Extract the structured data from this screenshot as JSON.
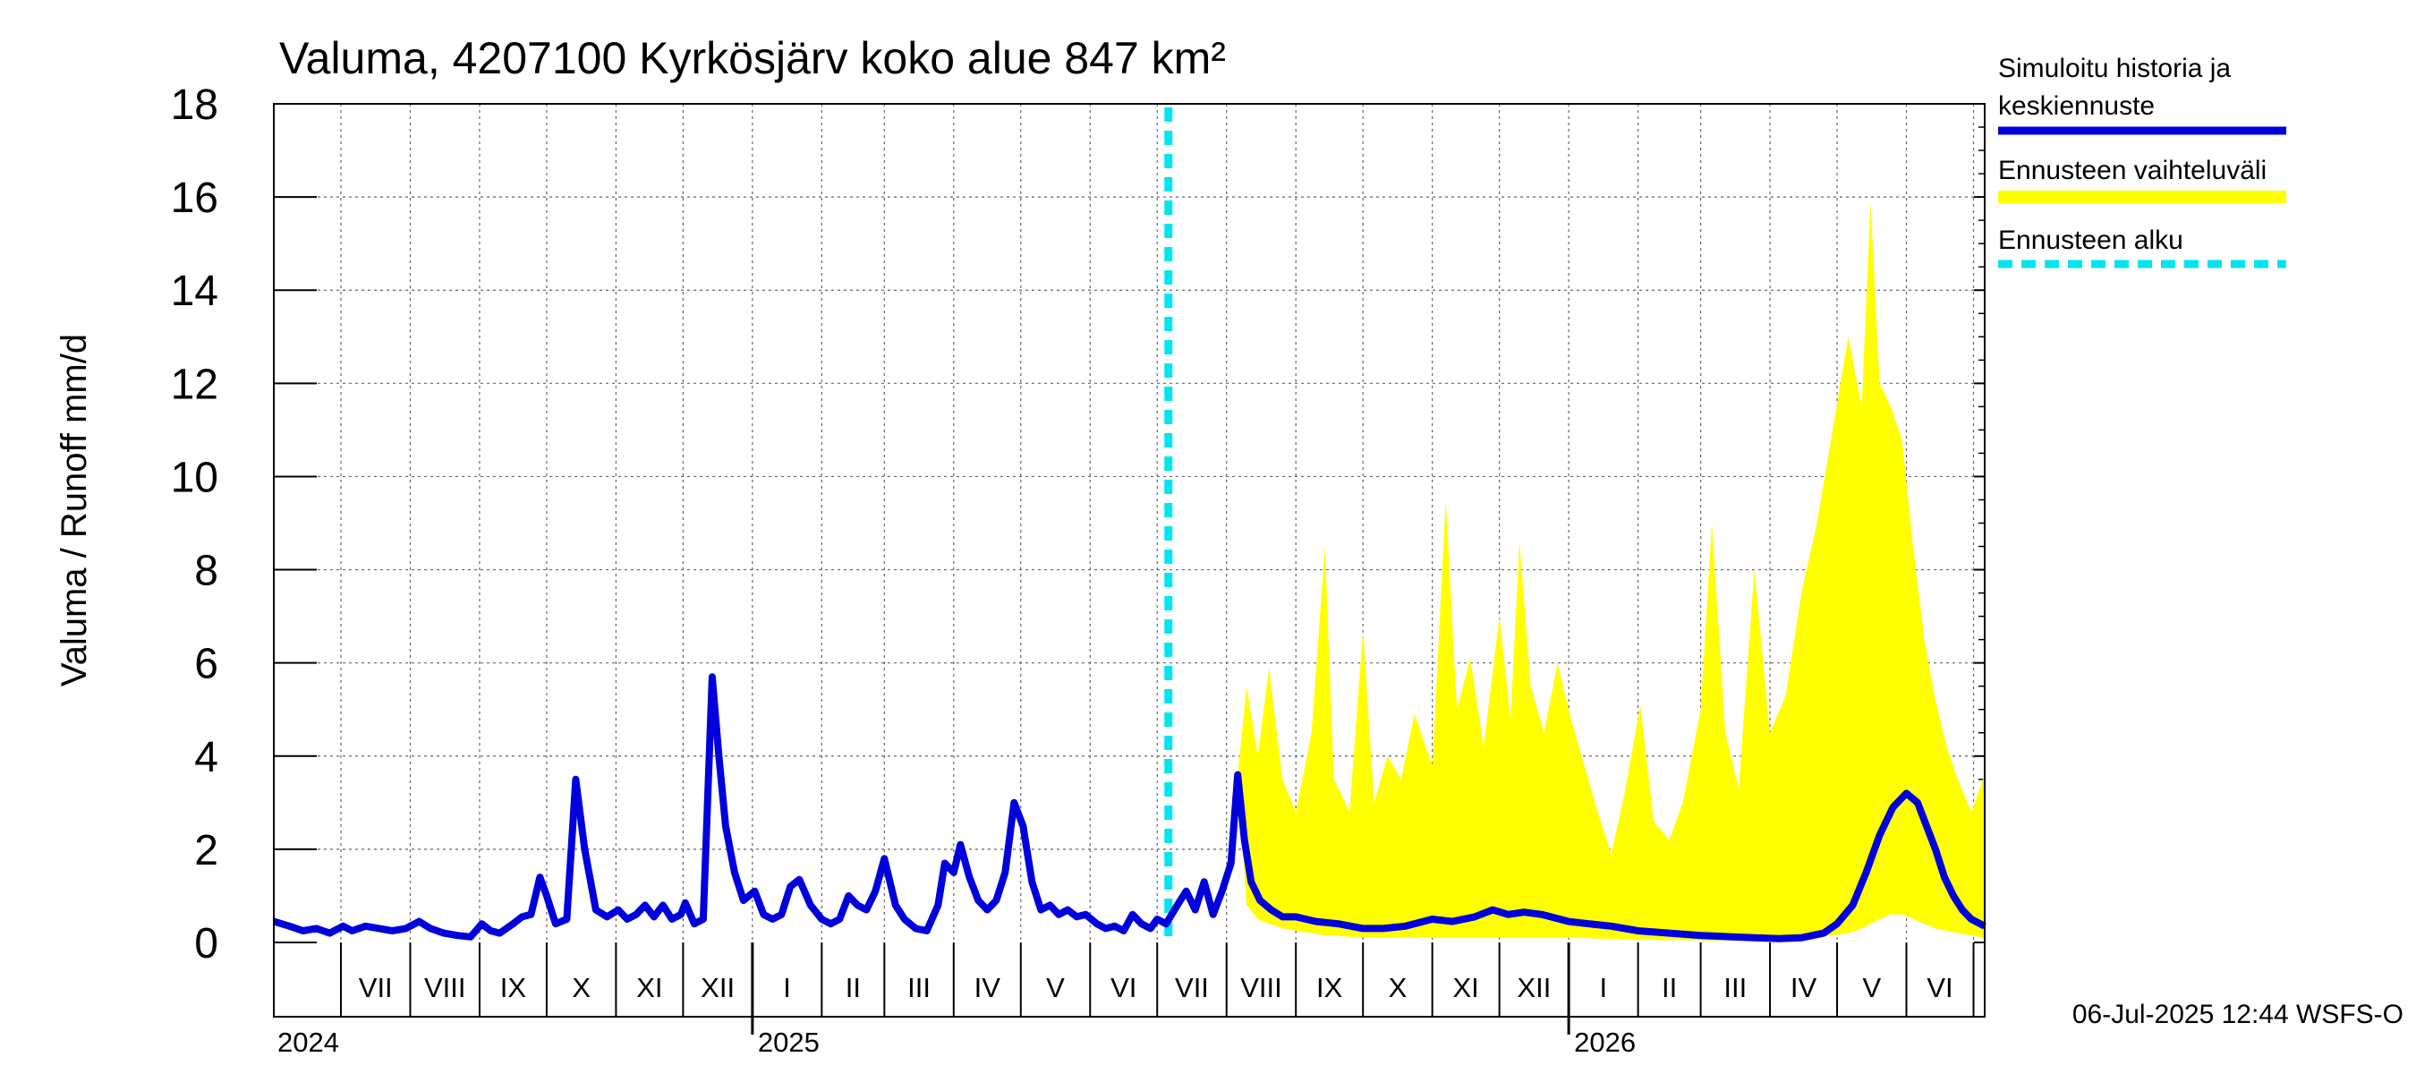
{
  "chart_data": {
    "type": "area+line",
    "title": "Valuma, 4207100 Kyrkösjärv koko alue 847 km²",
    "ylabel": "Valuma / Runoff     mm/d",
    "ylim": [
      0,
      18
    ],
    "yticks": [
      0,
      2,
      4,
      6,
      8,
      10,
      12,
      14,
      16,
      18
    ],
    "x_range": [
      "2024-06-01",
      "2026-07-06"
    ],
    "months": [
      "VII",
      "VIII",
      "IX",
      "X",
      "XI",
      "XII",
      "I",
      "II",
      "III",
      "IV",
      "V",
      "VI",
      "VII",
      "VIII",
      "IX",
      "X",
      "XI",
      "XII",
      "I",
      "II",
      "III",
      "IV",
      "V",
      "VI"
    ],
    "years": [
      "2024",
      "2025",
      "2026"
    ],
    "forecast_start": "2025-07-06",
    "legend": {
      "placement": "right",
      "items": [
        {
          "label_1": "Simuloitu historia ja",
          "label_2": "keskiennuste",
          "color": "#0000dd",
          "style": "solid"
        },
        {
          "label_1": "Ennusteen vaihteluväli",
          "color": "#ffff00",
          "style": "band"
        },
        {
          "label_1": "Ennusteen alku",
          "color": "#00e5ee",
          "style": "dashed"
        }
      ]
    },
    "series": [
      {
        "name": "Simuloitu historia ja keskiennuste",
        "color": "#0000dd",
        "points": [
          [
            "2024-06-01",
            0.45
          ],
          [
            "2024-06-08",
            0.35
          ],
          [
            "2024-06-14",
            0.25
          ],
          [
            "2024-06-20",
            0.3
          ],
          [
            "2024-06-26",
            0.2
          ],
          [
            "2024-07-02",
            0.35
          ],
          [
            "2024-07-06",
            0.25
          ],
          [
            "2024-07-12",
            0.35
          ],
          [
            "2024-07-18",
            0.3
          ],
          [
            "2024-07-24",
            0.25
          ],
          [
            "2024-07-30",
            0.3
          ],
          [
            "2024-08-05",
            0.45
          ],
          [
            "2024-08-10",
            0.3
          ],
          [
            "2024-08-16",
            0.2
          ],
          [
            "2024-08-22",
            0.15
          ],
          [
            "2024-08-28",
            0.12
          ],
          [
            "2024-09-02",
            0.4
          ],
          [
            "2024-09-06",
            0.25
          ],
          [
            "2024-09-10",
            0.2
          ],
          [
            "2024-09-16",
            0.4
          ],
          [
            "2024-09-20",
            0.55
          ],
          [
            "2024-09-24",
            0.6
          ],
          [
            "2024-09-28",
            1.4
          ],
          [
            "2024-10-01",
            1.0
          ],
          [
            "2024-10-05",
            0.4
          ],
          [
            "2024-10-10",
            0.5
          ],
          [
            "2024-10-14",
            3.5
          ],
          [
            "2024-10-18",
            2.0
          ],
          [
            "2024-10-23",
            0.7
          ],
          [
            "2024-10-28",
            0.55
          ],
          [
            "2024-11-02",
            0.7
          ],
          [
            "2024-11-06",
            0.5
          ],
          [
            "2024-11-10",
            0.6
          ],
          [
            "2024-11-14",
            0.8
          ],
          [
            "2024-11-18",
            0.55
          ],
          [
            "2024-11-22",
            0.8
          ],
          [
            "2024-11-26",
            0.5
          ],
          [
            "2024-11-30",
            0.6
          ],
          [
            "2024-12-02",
            0.85
          ],
          [
            "2024-12-06",
            0.4
          ],
          [
            "2024-12-10",
            0.5
          ],
          [
            "2024-12-14",
            5.7
          ],
          [
            "2024-12-17",
            4.0
          ],
          [
            "2024-12-20",
            2.5
          ],
          [
            "2024-12-24",
            1.5
          ],
          [
            "2024-12-28",
            0.9
          ],
          [
            "2025-01-02",
            1.1
          ],
          [
            "2025-01-06",
            0.6
          ],
          [
            "2025-01-10",
            0.5
          ],
          [
            "2025-01-14",
            0.6
          ],
          [
            "2025-01-18",
            1.2
          ],
          [
            "2025-01-22",
            1.35
          ],
          [
            "2025-01-27",
            0.8
          ],
          [
            "2025-02-01",
            0.5
          ],
          [
            "2025-02-05",
            0.4
          ],
          [
            "2025-02-09",
            0.5
          ],
          [
            "2025-02-13",
            1.0
          ],
          [
            "2025-02-17",
            0.8
          ],
          [
            "2025-02-21",
            0.7
          ],
          [
            "2025-02-25",
            1.1
          ],
          [
            "2025-03-01",
            1.8
          ],
          [
            "2025-03-06",
            0.8
          ],
          [
            "2025-03-10",
            0.5
          ],
          [
            "2025-03-15",
            0.3
          ],
          [
            "2025-03-20",
            0.25
          ],
          [
            "2025-03-25",
            0.8
          ],
          [
            "2025-03-28",
            1.7
          ],
          [
            "2025-04-01",
            1.5
          ],
          [
            "2025-04-04",
            2.1
          ],
          [
            "2025-04-08",
            1.4
          ],
          [
            "2025-04-12",
            0.9
          ],
          [
            "2025-04-16",
            0.7
          ],
          [
            "2025-04-20",
            0.9
          ],
          [
            "2025-04-24",
            1.5
          ],
          [
            "2025-04-28",
            3.0
          ],
          [
            "2025-05-02",
            2.5
          ],
          [
            "2025-05-06",
            1.3
          ],
          [
            "2025-05-10",
            0.7
          ],
          [
            "2025-05-14",
            0.8
          ],
          [
            "2025-05-18",
            0.6
          ],
          [
            "2025-05-22",
            0.7
          ],
          [
            "2025-05-26",
            0.55
          ],
          [
            "2025-05-30",
            0.6
          ],
          [
            "2025-06-04",
            0.4
          ],
          [
            "2025-06-08",
            0.3
          ],
          [
            "2025-06-12",
            0.35
          ],
          [
            "2025-06-16",
            0.25
          ],
          [
            "2025-06-20",
            0.6
          ],
          [
            "2025-06-24",
            0.4
          ],
          [
            "2025-06-28",
            0.3
          ],
          [
            "2025-07-01",
            0.5
          ],
          [
            "2025-07-05",
            0.4
          ],
          [
            "2025-07-10",
            0.8
          ],
          [
            "2025-07-14",
            1.1
          ],
          [
            "2025-07-18",
            0.7
          ],
          [
            "2025-07-22",
            1.3
          ],
          [
            "2025-07-26",
            0.6
          ],
          [
            "2025-07-30",
            1.1
          ],
          [
            "2025-08-03",
            1.7
          ],
          [
            "2025-08-06",
            3.6
          ],
          [
            "2025-08-09",
            2.2
          ],
          [
            "2025-08-12",
            1.3
          ],
          [
            "2025-08-16",
            0.9
          ],
          [
            "2025-08-21",
            0.7
          ],
          [
            "2025-08-26",
            0.55
          ],
          [
            "2025-09-01",
            0.55
          ],
          [
            "2025-09-10",
            0.45
          ],
          [
            "2025-09-20",
            0.4
          ],
          [
            "2025-10-01",
            0.3
          ],
          [
            "2025-10-10",
            0.3
          ],
          [
            "2025-10-20",
            0.35
          ],
          [
            "2025-11-01",
            0.5
          ],
          [
            "2025-11-10",
            0.45
          ],
          [
            "2025-11-20",
            0.55
          ],
          [
            "2025-11-28",
            0.7
          ],
          [
            "2025-12-05",
            0.6
          ],
          [
            "2025-12-12",
            0.65
          ],
          [
            "2025-12-20",
            0.6
          ],
          [
            "2026-01-01",
            0.45
          ],
          [
            "2026-01-10",
            0.4
          ],
          [
            "2026-01-20",
            0.35
          ],
          [
            "2026-02-01",
            0.25
          ],
          [
            "2026-02-15",
            0.2
          ],
          [
            "2026-03-01",
            0.15
          ],
          [
            "2026-03-15",
            0.12
          ],
          [
            "2026-03-25",
            0.1
          ],
          [
            "2026-04-05",
            0.08
          ],
          [
            "2026-04-15",
            0.1
          ],
          [
            "2026-04-25",
            0.2
          ],
          [
            "2026-05-01",
            0.4
          ],
          [
            "2026-05-08",
            0.8
          ],
          [
            "2026-05-14",
            1.5
          ],
          [
            "2026-05-20",
            2.3
          ],
          [
            "2026-05-26",
            2.9
          ],
          [
            "2026-06-01",
            3.2
          ],
          [
            "2026-06-06",
            3.0
          ],
          [
            "2026-06-10",
            2.5
          ],
          [
            "2026-06-14",
            2.0
          ],
          [
            "2026-06-18",
            1.4
          ],
          [
            "2026-06-22",
            1.0
          ],
          [
            "2026-06-26",
            0.7
          ],
          [
            "2026-06-30",
            0.5
          ],
          [
            "2026-07-06",
            0.35
          ]
        ]
      },
      {
        "name": "Ennusteen vaihteluväli",
        "color": "#ffff00",
        "band": [
          [
            "2025-08-06",
            3.6,
            3.6
          ],
          [
            "2025-08-10",
            5.5,
            0.8
          ],
          [
            "2025-08-15",
            4.0,
            0.5
          ],
          [
            "2025-08-20",
            5.9,
            0.4
          ],
          [
            "2025-08-26",
            3.5,
            0.3
          ],
          [
            "2025-09-01",
            2.8,
            0.25
          ],
          [
            "2025-09-08",
            4.5,
            0.2
          ],
          [
            "2025-09-14",
            8.5,
            0.15
          ],
          [
            "2025-09-18",
            3.5,
            0.15
          ],
          [
            "2025-09-25",
            2.8,
            0.12
          ],
          [
            "2025-10-01",
            6.7,
            0.12
          ],
          [
            "2025-10-06",
            3.0,
            0.1
          ],
          [
            "2025-10-12",
            4.0,
            0.1
          ],
          [
            "2025-10-18",
            3.5,
            0.1
          ],
          [
            "2025-10-24",
            4.9,
            0.1
          ],
          [
            "2025-11-01",
            3.8,
            0.1
          ],
          [
            "2025-11-07",
            9.5,
            0.1
          ],
          [
            "2025-11-12",
            5.0,
            0.1
          ],
          [
            "2025-11-18",
            6.1,
            0.1
          ],
          [
            "2025-11-24",
            4.2,
            0.1
          ],
          [
            "2025-12-01",
            7.0,
            0.1
          ],
          [
            "2025-12-06",
            4.8,
            0.1
          ],
          [
            "2025-12-10",
            8.6,
            0.1
          ],
          [
            "2025-12-15",
            5.5,
            0.1
          ],
          [
            "2025-12-21",
            4.5,
            0.1
          ],
          [
            "2025-12-27",
            6.0,
            0.1
          ],
          [
            "2026-01-02",
            4.8,
            0.1
          ],
          [
            "2026-01-08",
            3.8,
            0.1
          ],
          [
            "2026-01-14",
            2.8,
            0.08
          ],
          [
            "2026-01-20",
            1.9,
            0.08
          ],
          [
            "2026-01-26",
            3.2,
            0.07
          ],
          [
            "2026-02-02",
            5.1,
            0.06
          ],
          [
            "2026-02-08",
            2.6,
            0.05
          ],
          [
            "2026-02-15",
            2.2,
            0.05
          ],
          [
            "2026-02-21",
            3.0,
            0.05
          ],
          [
            "2026-03-01",
            5.0,
            0.04
          ],
          [
            "2026-03-06",
            9.0,
            0.04
          ],
          [
            "2026-03-12",
            4.5,
            0.04
          ],
          [
            "2026-03-18",
            3.3,
            0.04
          ],
          [
            "2026-03-25",
            8.0,
            0.04
          ],
          [
            "2026-04-01",
            4.5,
            0.05
          ],
          [
            "2026-04-08",
            5.3,
            0.05
          ],
          [
            "2026-04-15",
            7.5,
            0.06
          ],
          [
            "2026-04-22",
            9.0,
            0.1
          ],
          [
            "2026-04-29",
            11.0,
            0.15
          ],
          [
            "2026-05-06",
            13.0,
            0.2
          ],
          [
            "2026-05-12",
            11.5,
            0.3
          ],
          [
            "2026-05-16",
            15.9,
            0.4
          ],
          [
            "2026-05-20",
            12.0,
            0.5
          ],
          [
            "2026-05-25",
            11.5,
            0.6
          ],
          [
            "2026-05-30",
            10.8,
            0.6
          ],
          [
            "2026-06-04",
            8.5,
            0.5
          ],
          [
            "2026-06-09",
            6.5,
            0.4
          ],
          [
            "2026-06-14",
            5.2,
            0.3
          ],
          [
            "2026-06-19",
            4.2,
            0.25
          ],
          [
            "2026-06-24",
            3.5,
            0.2
          ],
          [
            "2026-06-30",
            2.8,
            0.15
          ],
          [
            "2026-07-06",
            3.6,
            0.1
          ]
        ]
      }
    ]
  },
  "footer": {
    "timestamp": "06-Jul-2025 12:44 WSFS-O"
  }
}
